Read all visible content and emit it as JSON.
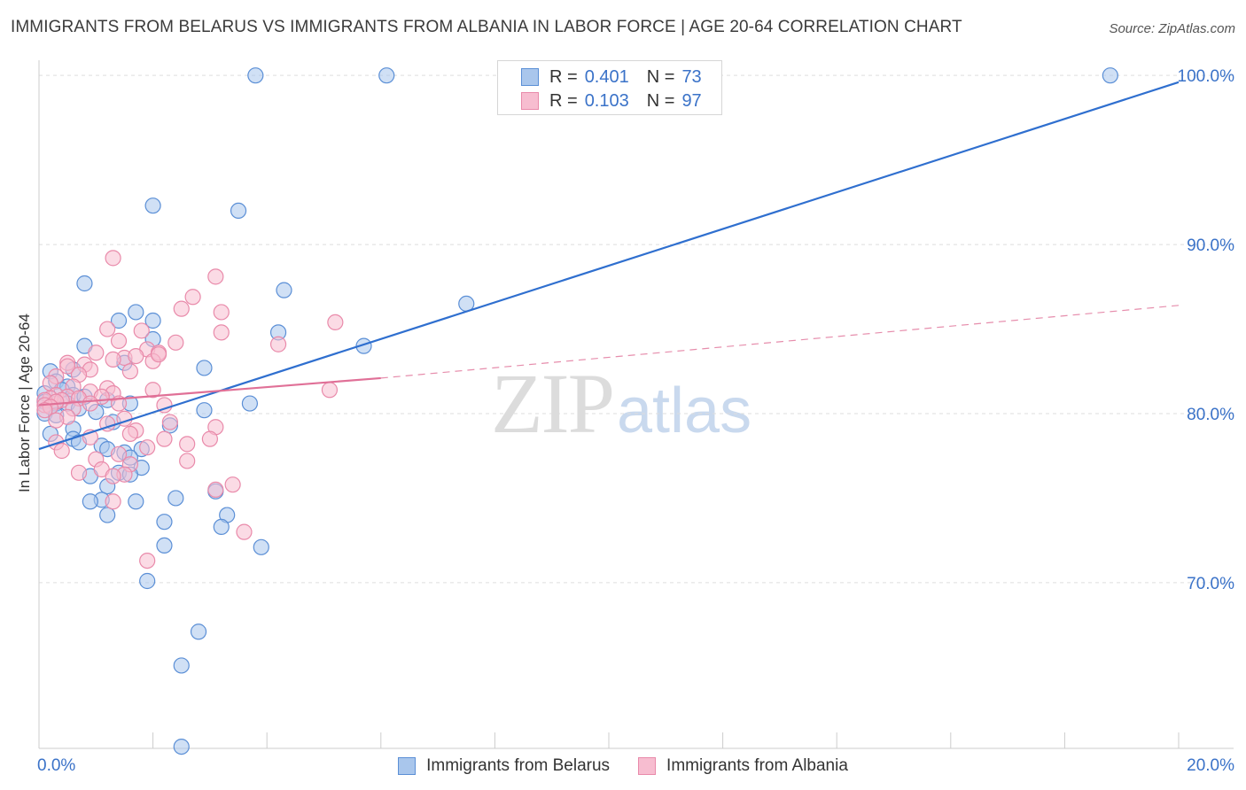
{
  "header": {
    "title": "IMMIGRANTS FROM BELARUS VS IMMIGRANTS FROM ALBANIA IN LABOR FORCE | AGE 20-64 CORRELATION CHART",
    "source": "Source: ZipAtlas.com"
  },
  "watermark": {
    "zip": "ZIP",
    "atlas": "atlas"
  },
  "legend": {
    "belarus": {
      "r_label": "R =",
      "r_value": "0.401",
      "n_label": "N =",
      "n_value": "73"
    },
    "albania": {
      "r_label": "R =",
      "r_value": "0.103",
      "n_label": "N =",
      "n_value": "97"
    }
  },
  "bottom_legend": {
    "belarus": "Immigrants from Belarus",
    "albania": "Immigrants from Albania"
  },
  "colors": {
    "belarus_fill": "#a9c6ec",
    "belarus_stroke": "#5b8fd6",
    "belarus_line": "#2f6fcf",
    "albania_fill": "#f7bdd0",
    "albania_stroke": "#e98aaa",
    "albania_line": "#e07097",
    "tick_label": "#3a72c8",
    "grid": "#dddddd"
  },
  "chart_data": {
    "type": "scatter",
    "title": "IMMIGRANTS FROM BELARUS VS IMMIGRANTS FROM ALBANIA IN LABOR FORCE | AGE 20-64 CORRELATION CHART",
    "xlabel": "",
    "ylabel": "In Labor Force | Age 20-64",
    "xlim": [
      0,
      20
    ],
    "ylim": [
      60.2,
      100.9
    ],
    "x_tick_labels": [
      {
        "value": 0,
        "label": "0.0%"
      },
      {
        "value": 20,
        "label": "20.0%"
      }
    ],
    "y_tick_labels": [
      {
        "value": 70,
        "label": "70.0%"
      },
      {
        "value": 80,
        "label": "80.0%"
      },
      {
        "value": 90,
        "label": "90.0%"
      },
      {
        "value": 100,
        "label": "100.0%"
      }
    ],
    "series": [
      {
        "name": "Immigrants from Belarus",
        "color": "#5b8fd6",
        "trend": {
          "x": [
            0.0,
            20.0
          ],
          "y": [
            77.9,
            99.6
          ],
          "dashed_extension": false
        },
        "points": [
          [
            3.8,
            100.0
          ],
          [
            6.1,
            100.0
          ],
          [
            18.8,
            100.0
          ],
          [
            2.0,
            92.3
          ],
          [
            3.5,
            92.0
          ],
          [
            0.8,
            87.7
          ],
          [
            4.3,
            87.3
          ],
          [
            7.5,
            86.5
          ],
          [
            1.7,
            86.0
          ],
          [
            2.0,
            85.5
          ],
          [
            1.4,
            85.5
          ],
          [
            4.2,
            84.8
          ],
          [
            2.0,
            84.4
          ],
          [
            5.7,
            84.0
          ],
          [
            0.8,
            84.0
          ],
          [
            1.5,
            83.0
          ],
          [
            0.2,
            82.5
          ],
          [
            2.9,
            82.7
          ],
          [
            0.6,
            82.6
          ],
          [
            0.3,
            81.9
          ],
          [
            0.5,
            81.6
          ],
          [
            0.4,
            81.4
          ],
          [
            0.1,
            81.2
          ],
          [
            0.6,
            81.1
          ],
          [
            0.8,
            81.0
          ],
          [
            1.2,
            80.8
          ],
          [
            0.1,
            80.7
          ],
          [
            0.3,
            80.6
          ],
          [
            0.5,
            80.6
          ],
          [
            1.6,
            80.6
          ],
          [
            3.7,
            80.6
          ],
          [
            0.2,
            80.4
          ],
          [
            0.7,
            80.3
          ],
          [
            1.0,
            80.1
          ],
          [
            0.1,
            80.0
          ],
          [
            2.9,
            80.2
          ],
          [
            0.3,
            79.9
          ],
          [
            1.3,
            79.5
          ],
          [
            2.3,
            79.3
          ],
          [
            0.6,
            79.1
          ],
          [
            0.2,
            78.8
          ],
          [
            0.6,
            78.5
          ],
          [
            0.7,
            78.3
          ],
          [
            1.1,
            78.1
          ],
          [
            1.8,
            77.9
          ],
          [
            1.2,
            77.9
          ],
          [
            1.5,
            77.7
          ],
          [
            1.6,
            77.4
          ],
          [
            1.8,
            76.8
          ],
          [
            1.4,
            76.5
          ],
          [
            1.6,
            76.4
          ],
          [
            0.9,
            76.3
          ],
          [
            1.2,
            75.7
          ],
          [
            3.1,
            75.4
          ],
          [
            2.4,
            75.0
          ],
          [
            1.1,
            74.9
          ],
          [
            0.9,
            74.8
          ],
          [
            1.7,
            74.8
          ],
          [
            3.3,
            74.0
          ],
          [
            1.2,
            74.0
          ],
          [
            2.2,
            73.6
          ],
          [
            3.2,
            73.3
          ],
          [
            2.2,
            72.2
          ],
          [
            3.9,
            72.1
          ],
          [
            1.9,
            70.1
          ],
          [
            2.8,
            67.1
          ],
          [
            2.5,
            65.1
          ],
          [
            2.5,
            60.3
          ]
        ]
      },
      {
        "name": "Immigrants from Albania",
        "color": "#e98aaa",
        "trend": {
          "x": [
            0.0,
            6.0
          ],
          "y": [
            80.5,
            82.1
          ],
          "dashed_extension": {
            "x": [
              6.0,
              20.0
            ],
            "y": [
              82.1,
              86.4
            ]
          }
        },
        "points": [
          [
            1.3,
            89.2
          ],
          [
            3.1,
            88.1
          ],
          [
            2.7,
            86.9
          ],
          [
            3.2,
            86.0
          ],
          [
            2.5,
            86.2
          ],
          [
            5.2,
            85.4
          ],
          [
            1.2,
            85.0
          ],
          [
            1.8,
            84.9
          ],
          [
            3.2,
            84.8
          ],
          [
            1.4,
            84.3
          ],
          [
            2.4,
            84.2
          ],
          [
            4.2,
            84.1
          ],
          [
            1.9,
            83.8
          ],
          [
            2.1,
            83.6
          ],
          [
            1.5,
            83.3
          ],
          [
            1.0,
            83.6
          ],
          [
            1.7,
            83.4
          ],
          [
            2.0,
            83.1
          ],
          [
            1.3,
            83.2
          ],
          [
            2.1,
            83.5
          ],
          [
            0.5,
            83.0
          ],
          [
            0.8,
            82.9
          ],
          [
            0.5,
            82.8
          ],
          [
            0.9,
            82.6
          ],
          [
            1.6,
            82.5
          ],
          [
            0.7,
            82.3
          ],
          [
            0.3,
            82.2
          ],
          [
            0.2,
            81.8
          ],
          [
            1.2,
            81.5
          ],
          [
            0.6,
            81.6
          ],
          [
            2.0,
            81.4
          ],
          [
            0.9,
            81.3
          ],
          [
            1.3,
            81.2
          ],
          [
            0.3,
            81.1
          ],
          [
            0.5,
            81.0
          ],
          [
            1.1,
            81.0
          ],
          [
            0.2,
            80.9
          ],
          [
            0.7,
            80.9
          ],
          [
            0.1,
            80.8
          ],
          [
            0.4,
            80.8
          ],
          [
            1.4,
            80.6
          ],
          [
            0.3,
            80.7
          ],
          [
            0.9,
            80.6
          ],
          [
            0.1,
            80.5
          ],
          [
            0.2,
            80.4
          ],
          [
            0.6,
            80.3
          ],
          [
            0.1,
            80.2
          ],
          [
            2.2,
            80.5
          ],
          [
            5.1,
            81.4
          ],
          [
            0.5,
            79.8
          ],
          [
            1.5,
            79.7
          ],
          [
            0.3,
            79.6
          ],
          [
            1.2,
            79.4
          ],
          [
            2.3,
            79.5
          ],
          [
            3.1,
            79.2
          ],
          [
            1.7,
            79.0
          ],
          [
            1.6,
            78.8
          ],
          [
            0.9,
            78.6
          ],
          [
            3.0,
            78.5
          ],
          [
            2.2,
            78.5
          ],
          [
            0.3,
            78.3
          ],
          [
            2.6,
            78.2
          ],
          [
            1.9,
            78.0
          ],
          [
            0.4,
            77.8
          ],
          [
            1.4,
            77.6
          ],
          [
            1.0,
            77.3
          ],
          [
            2.6,
            77.2
          ],
          [
            1.6,
            77.0
          ],
          [
            1.1,
            76.7
          ],
          [
            0.7,
            76.5
          ],
          [
            1.5,
            76.4
          ],
          [
            1.3,
            76.3
          ],
          [
            3.4,
            75.8
          ],
          [
            3.1,
            75.5
          ],
          [
            1.3,
            74.8
          ],
          [
            3.6,
            73.0
          ],
          [
            1.9,
            71.3
          ]
        ]
      }
    ]
  }
}
